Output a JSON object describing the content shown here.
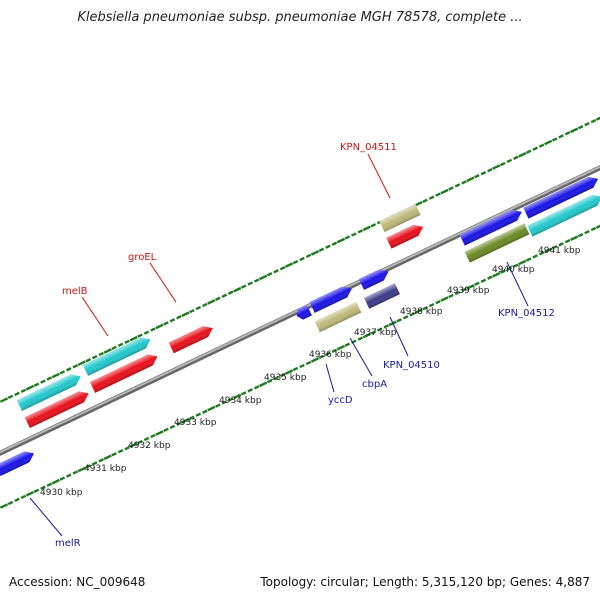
{
  "title": "Klebsiella pneumoniae subsp. pneumoniae MGH 78578, complete ...",
  "footer": {
    "accession": "Accession: NC_009648",
    "summary": "Topology: circular; Length: 5,315,120 bp; Genes: 4,887"
  },
  "colors": {
    "red_gene": "#e8101a",
    "cyan_gene": "#22c8cc",
    "blue_gene": "#1a14e6",
    "khaki_gene": "#bdb97a",
    "navy_gene": "#3d3a8a",
    "olive_gene": "#6b8a25",
    "tick_green": "#1f7a1f",
    "backbone": "#8a8a8a",
    "top_label": "#cc1111",
    "bottom_label": "#1a1a99"
  },
  "scale_labels": [
    "4930 kbp",
    "4931 kbp",
    "4932 kbp",
    "4933 kbp",
    "4934 kbp",
    "4935 kbp",
    "4936 kbp",
    "4937 kbp",
    "4938 kbp",
    "4939 kbp",
    "4940 kbp",
    "4941 kbp"
  ],
  "gene_labels_top": [
    "melB",
    "groEL",
    "KPN_04511"
  ],
  "gene_labels_bottom": [
    "melR",
    "yccD",
    "cbpA",
    "KPN_04510",
    "KPN_04512"
  ]
}
